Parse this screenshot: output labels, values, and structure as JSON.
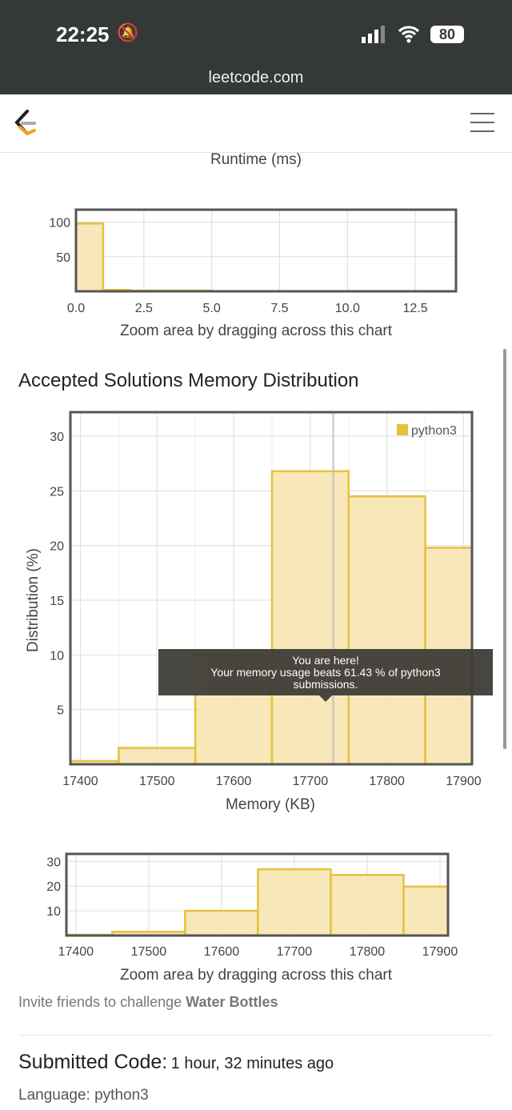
{
  "status_bar": {
    "time": "22:25",
    "battery": "80",
    "url": "leetcode.com"
  },
  "colors": {
    "bar_fill": "#f7e3ab",
    "bar_stroke": "#e6c13e",
    "frame": "#555555",
    "tooltip_bg": "#3f3d38"
  },
  "runtime_section": {
    "axis_title": "Runtime (ms)",
    "zoom_hint": "Zoom area by dragging across this chart"
  },
  "memory_section": {
    "title": "Accepted Solutions Memory Distribution",
    "zoom_hint": "Zoom area by dragging across this chart",
    "tooltip": {
      "line1": "You are here!",
      "line2": "Your memory usage beats 61.43 % of python3",
      "line3": "submissions."
    }
  },
  "invite": {
    "text": "Invite friends to challenge ",
    "problem": "Water Bottles"
  },
  "submitted": {
    "label": "Submitted Code:",
    "time": "1 hour, 32 minutes ago",
    "language": "Language: python3"
  },
  "chart_data": [
    {
      "type": "bar",
      "role": "runtime-navigator",
      "xlim": [
        0,
        14
      ],
      "ylim": [
        0,
        118
      ],
      "xticks": [
        "0.0",
        "2.5",
        "5.0",
        "7.5",
        "10.0",
        "12.5"
      ],
      "xtick_values": [
        0,
        2.5,
        5,
        7.5,
        10,
        12.5
      ],
      "yticks": [
        "50",
        "100"
      ],
      "ytick_values": [
        50,
        100
      ],
      "grid": true,
      "bins": [
        {
          "x0": 0,
          "x1": 1,
          "y": 98
        },
        {
          "x0": 1,
          "x1": 2,
          "y": 2
        },
        {
          "x0": 2,
          "x1": 5,
          "y": 1
        }
      ]
    },
    {
      "type": "bar",
      "role": "memory-main",
      "xlabel": "Memory (KB)",
      "ylabel": "Distribution (%)",
      "xlim": [
        17387,
        17911
      ],
      "ylim": [
        0,
        32.2
      ],
      "xticks": [
        "17400",
        "17500",
        "17600",
        "17700",
        "17800",
        "17900"
      ],
      "xtick_values": [
        17400,
        17500,
        17600,
        17700,
        17800,
        17900
      ],
      "yticks": [
        "5",
        "10",
        "15",
        "20",
        "25",
        "30"
      ],
      "ytick_values": [
        5,
        10,
        15,
        20,
        25,
        30
      ],
      "grid": true,
      "legend": {
        "label": "python3",
        "placement": "top-right"
      },
      "marker_x": 17730,
      "bins": [
        {
          "x0": 17387,
          "x1": 17450,
          "y": 0.3
        },
        {
          "x0": 17450,
          "x1": 17550,
          "y": 1.5
        },
        {
          "x0": 17550,
          "x1": 17650,
          "y": 10
        },
        {
          "x0": 17650,
          "x1": 17750,
          "y": 26.8
        },
        {
          "x0": 17750,
          "x1": 17850,
          "y": 24.5
        },
        {
          "x0": 17850,
          "x1": 17911,
          "y": 19.8
        }
      ]
    },
    {
      "type": "bar",
      "role": "memory-navigator",
      "xlim": [
        17387,
        17911
      ],
      "ylim": [
        0,
        33
      ],
      "xticks": [
        "17400",
        "17500",
        "17600",
        "17700",
        "17800",
        "17900"
      ],
      "xtick_values": [
        17400,
        17500,
        17600,
        17700,
        17800,
        17900
      ],
      "yticks": [
        "10",
        "20",
        "30"
      ],
      "ytick_values": [
        10,
        20,
        30
      ],
      "grid": true,
      "bins": [
        {
          "x0": 17387,
          "x1": 17450,
          "y": 0.3
        },
        {
          "x0": 17450,
          "x1": 17550,
          "y": 1.5
        },
        {
          "x0": 17550,
          "x1": 17650,
          "y": 10
        },
        {
          "x0": 17650,
          "x1": 17750,
          "y": 26.8
        },
        {
          "x0": 17750,
          "x1": 17850,
          "y": 24.5
        },
        {
          "x0": 17850,
          "x1": 17911,
          "y": 19.8
        }
      ]
    }
  ]
}
